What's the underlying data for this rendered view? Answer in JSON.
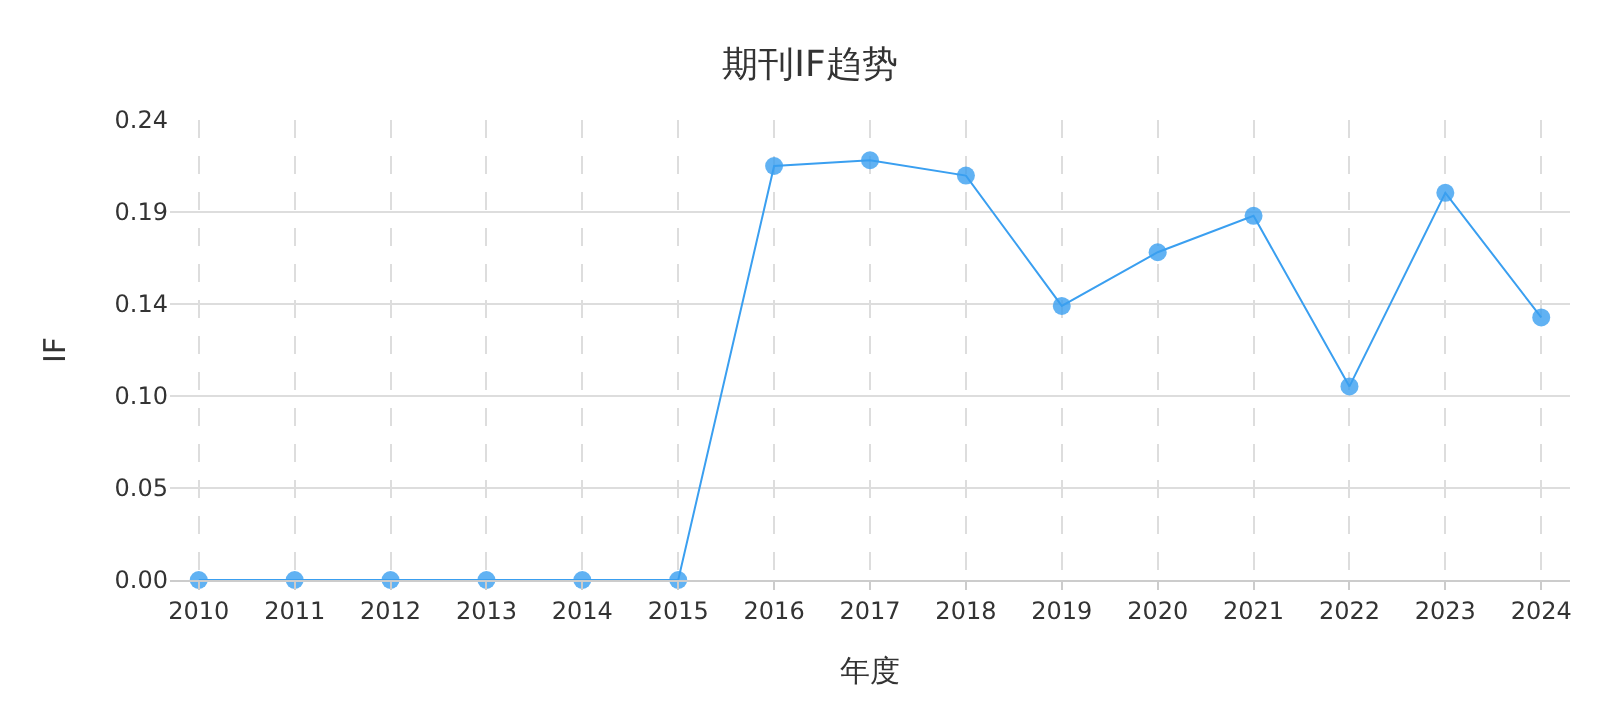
{
  "chart_data": {
    "type": "line",
    "title": "期刊IF趋势",
    "xlabel": "年度",
    "ylabel": "IF",
    "categories": [
      "2010",
      "2011",
      "2012",
      "2013",
      "2014",
      "2015",
      "2016",
      "2017",
      "2018",
      "2019",
      "2020",
      "2021",
      "2022",
      "2023",
      "2024"
    ],
    "series": [
      {
        "color": "#3a9ff0",
        "values": [
          0,
          0,
          0,
          0,
          0,
          0,
          0.216,
          0.219,
          0.211,
          0.143,
          0.171,
          0.19,
          0.101,
          0.202,
          0.137
        ]
      }
    ],
    "ylim": [
      0,
      0.24
    ],
    "yticks": [
      {
        "value": 0,
        "label": "0.00"
      },
      {
        "value": 0.048,
        "label": "0.05"
      },
      {
        "value": 0.096,
        "label": "0.10"
      },
      {
        "value": 0.144,
        "label": "0.14"
      },
      {
        "value": 0.192,
        "label": "0.19"
      },
      {
        "value": 0.24,
        "label": "0.24"
      }
    ],
    "grid": true,
    "marker": "circle",
    "line_style": "solid"
  }
}
